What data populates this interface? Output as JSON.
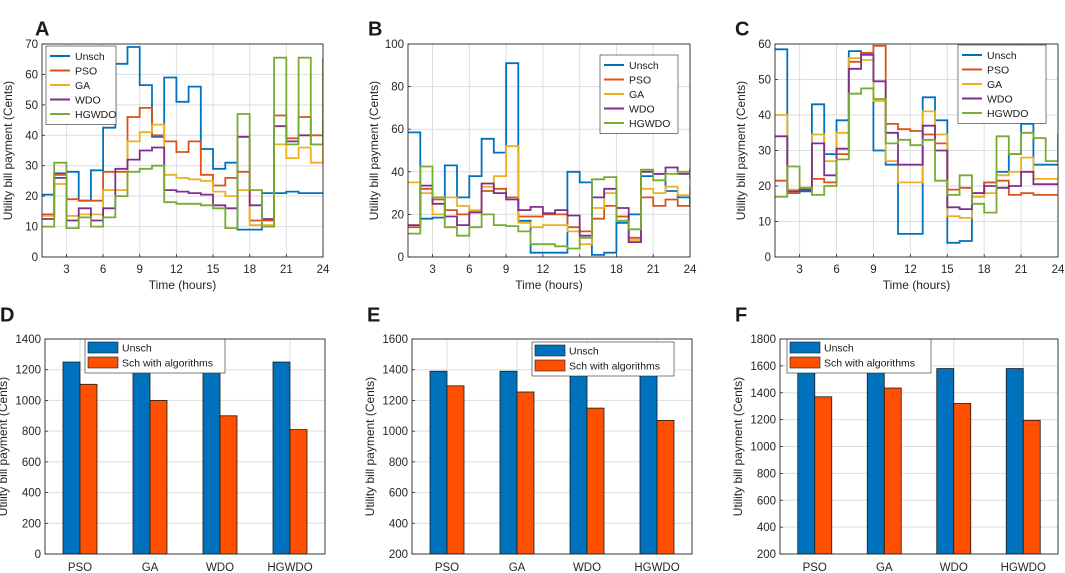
{
  "chart_data": [
    {
      "panel": "A",
      "type": "line",
      "step": true,
      "xlabel": "Time (hours)",
      "ylabel": "Utility bill payment (Cents)",
      "xlim": [
        1,
        24
      ],
      "ylim": [
        0,
        70
      ],
      "xticks": [
        3,
        6,
        9,
        12,
        15,
        18,
        21,
        24
      ],
      "yticks": [
        0,
        10,
        20,
        30,
        40,
        50,
        60,
        70
      ],
      "legend": "top-left",
      "series": [
        {
          "name": "Unsch",
          "color": "#0072BD",
          "values": [
            20.5,
            27.5,
            28,
            18.5,
            28.5,
            42.5,
            63.5,
            69,
            56.5,
            39.5,
            59,
            51,
            56,
            35.5,
            29,
            31,
            9,
            9,
            21,
            21,
            21.5,
            21,
            21,
            21
          ]
        },
        {
          "name": "PSO",
          "color": "#D95319",
          "values": [
            14,
            27,
            19,
            18.5,
            18.5,
            28,
            28,
            46,
            49,
            40,
            38,
            34.5,
            38,
            27,
            23.5,
            26,
            28,
            12,
            12,
            46.5,
            39,
            46,
            40,
            44
          ]
        },
        {
          "name": "GA",
          "color": "#EDB120",
          "values": [
            13.5,
            24,
            13.5,
            14,
            14,
            22,
            22,
            38,
            41,
            43.5,
            27,
            26,
            25.5,
            25,
            21.5,
            20,
            22,
            10.5,
            10.5,
            37,
            32.5,
            36,
            31,
            36
          ]
        },
        {
          "name": "WDO",
          "color": "#7E2F8E",
          "values": [
            12.5,
            26,
            12,
            16,
            12,
            16,
            29,
            32,
            35,
            36,
            22,
            21.5,
            21,
            20.5,
            17,
            16,
            39.5,
            17,
            12.5,
            43,
            38,
            40,
            37,
            41
          ]
        },
        {
          "name": "HGWDO",
          "color": "#77AC30",
          "values": [
            10,
            31,
            9.5,
            13,
            10,
            13,
            20,
            28,
            29,
            30,
            18,
            17.5,
            17.5,
            17,
            16,
            9.5,
            47,
            22,
            10,
            65.5,
            37,
            65.5,
            37,
            65
          ]
        }
      ]
    },
    {
      "panel": "B",
      "type": "line",
      "step": true,
      "xlabel": "Time (hours)",
      "ylabel": "Utility bill payment (Cents)",
      "xlim": [
        1,
        24
      ],
      "ylim": [
        0,
        100
      ],
      "xticks": [
        3,
        6,
        9,
        12,
        15,
        18,
        21,
        24
      ],
      "yticks": [
        0,
        20,
        40,
        60,
        80,
        100
      ],
      "legend": "top-right",
      "series": [
        {
          "name": "Unsch",
          "color": "#0072BD",
          "values": [
            58.5,
            18,
            18.5,
            43,
            28,
            38,
            55.5,
            49,
            91,
            17,
            2,
            2,
            2,
            40,
            35,
            1,
            2,
            16,
            20,
            38,
            39,
            31,
            28,
            24
          ]
        },
        {
          "name": "PSO",
          "color": "#D95319",
          "values": [
            14,
            32,
            27,
            22,
            20,
            21,
            31,
            32,
            28,
            19,
            19,
            20,
            20,
            14,
            12,
            18,
            24,
            19,
            9,
            28,
            24,
            27,
            24,
            25
          ]
        },
        {
          "name": "GA",
          "color": "#EDB120",
          "values": [
            35,
            30,
            20,
            28,
            24,
            22,
            33,
            38,
            52,
            16,
            14,
            15,
            15,
            12,
            6,
            23,
            30,
            17,
            8,
            32,
            30,
            33,
            29,
            33
          ]
        },
        {
          "name": "WDO",
          "color": "#7E2F8E",
          "values": [
            15,
            33.5,
            25,
            19,
            15,
            21,
            34.5,
            30,
            27,
            22,
            23.5,
            20.5,
            22,
            19.5,
            10,
            28,
            32,
            23,
            7,
            40,
            39,
            42,
            39,
            41
          ]
        },
        {
          "name": "HGWDO",
          "color": "#77AC30",
          "values": [
            11,
            42.5,
            28,
            14,
            10,
            14,
            20,
            15,
            14.5,
            12,
            6,
            6,
            5,
            4,
            9,
            36.5,
            37.5,
            17,
            13,
            41,
            36,
            39,
            40,
            37
          ]
        }
      ]
    },
    {
      "panel": "C",
      "type": "line",
      "step": true,
      "xlabel": "Time (hours)",
      "ylabel": "Utility bill payment (Cents)",
      "xlim": [
        1,
        24
      ],
      "ylim": [
        0,
        60
      ],
      "xticks": [
        3,
        6,
        9,
        12,
        15,
        18,
        21,
        24
      ],
      "yticks": [
        0,
        10,
        20,
        30,
        40,
        50,
        60
      ],
      "legend": "top-right",
      "series": [
        {
          "name": "Unsch",
          "color": "#0072BD",
          "values": [
            58.5,
            18,
            18.5,
            43,
            29,
            38.5,
            58,
            57,
            30,
            26,
            6.5,
            6.5,
            45,
            38.5,
            4,
            4.5,
            17,
            21,
            24,
            29,
            37.5,
            26,
            26,
            26
          ]
        },
        {
          "name": "PSO",
          "color": "#D95319",
          "values": [
            21.5,
            18,
            19,
            22,
            21,
            29,
            55,
            57.5,
            59.5,
            37.5,
            36,
            35.5,
            34.5,
            32,
            19,
            19.5,
            18,
            21,
            21.5,
            17.5,
            18,
            17.5,
            17.5,
            17.5
          ]
        },
        {
          "name": "GA",
          "color": "#EDB120",
          "values": [
            40,
            19,
            19.5,
            34.5,
            27,
            35,
            56,
            55.5,
            44,
            27,
            21,
            21,
            41,
            34.5,
            11.5,
            11,
            17,
            18,
            23,
            24,
            28,
            22,
            22,
            22
          ]
        },
        {
          "name": "WDO",
          "color": "#7E2F8E",
          "values": [
            34,
            18.5,
            19,
            32,
            23,
            30.5,
            53,
            57,
            49.5,
            35,
            26,
            26,
            37,
            30,
            14,
            13.5,
            18,
            20,
            19.5,
            20,
            24,
            20.5,
            20.5,
            20.5
          ]
        },
        {
          "name": "HGWDO",
          "color": "#77AC30",
          "values": [
            17,
            25.5,
            19.5,
            17.5,
            20,
            27.5,
            46,
            47.5,
            44.5,
            32,
            33,
            31.5,
            33,
            21.5,
            17.5,
            23,
            15,
            12.5,
            34,
            29,
            35,
            33.5,
            27,
            34.5
          ]
        }
      ]
    },
    {
      "panel": "D",
      "type": "bar",
      "categories": [
        "PSO",
        "GA",
        "WDO",
        "HGWDO"
      ],
      "xlabel": "",
      "ylabel": "Utility bill payment (Cents)",
      "ylim": [
        0,
        1400
      ],
      "yticks": [
        0,
        200,
        400,
        600,
        800,
        1000,
        1200,
        1400
      ],
      "legend": "top-left",
      "series": [
        {
          "name": "Unsch",
          "color": "#0072BD",
          "values": [
            1250,
            1250,
            1250,
            1250
          ]
        },
        {
          "name": "Sch with algorithms",
          "color": "#FF4F00",
          "values": [
            1105,
            1000,
            900,
            810
          ]
        }
      ]
    },
    {
      "panel": "E",
      "type": "bar",
      "categories": [
        "PSO",
        "GA",
        "WDO",
        "HGWDO"
      ],
      "xlabel": "",
      "ylabel": "Utility bill payment (Cents)",
      "ylim": [
        200,
        1600
      ],
      "yticks": [
        200,
        400,
        600,
        800,
        1000,
        1200,
        1400,
        1600
      ],
      "legend": "top-center",
      "series": [
        {
          "name": "Unsch",
          "color": "#0072BD",
          "values": [
            1390,
            1390,
            1390,
            1390
          ]
        },
        {
          "name": "Sch with algorithms",
          "color": "#FF4F00",
          "values": [
            1295,
            1255,
            1150,
            1070
          ]
        }
      ]
    },
    {
      "panel": "F",
      "type": "bar",
      "categories": [
        "PSO",
        "GA",
        "WDO",
        "HGWDO"
      ],
      "xlabel": "",
      "ylabel": "Utility bill payment (Cents)",
      "ylim": [
        200,
        1800
      ],
      "yticks": [
        200,
        400,
        600,
        800,
        1000,
        1200,
        1400,
        1600,
        1800
      ],
      "legend": "top-center",
      "series": [
        {
          "name": "Unsch",
          "color": "#0072BD",
          "values": [
            1580,
            1580,
            1580,
            1580
          ]
        },
        {
          "name": "Sch with algorithms",
          "color": "#FF4F00",
          "values": [
            1370,
            1435,
            1320,
            1195
          ]
        }
      ]
    }
  ]
}
